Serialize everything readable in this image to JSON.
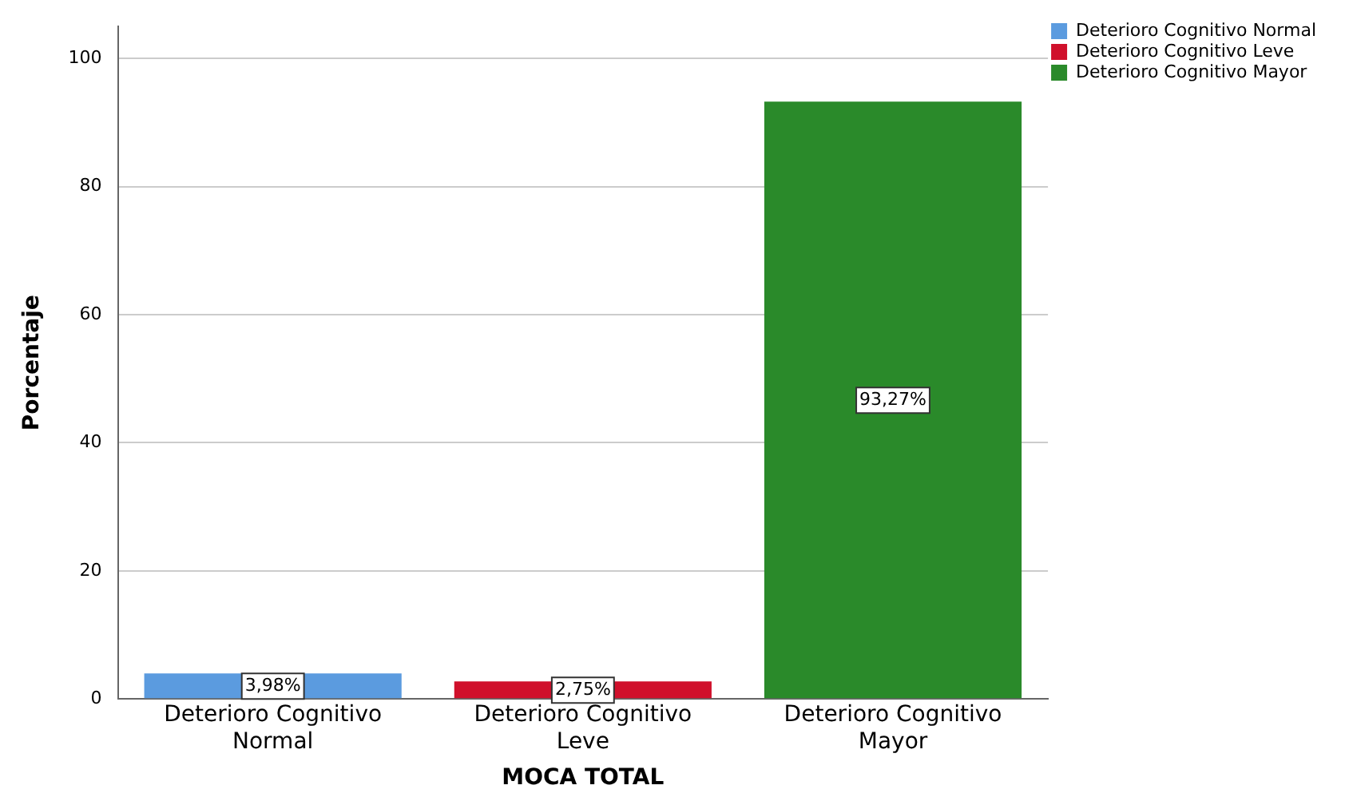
{
  "chart_data": {
    "type": "bar",
    "xlabel": "MOCA TOTAL",
    "ylabel": "Porcentaje",
    "categories": [
      "Deterioro Cognitivo Normal",
      "Deterioro Cognitivo Leve",
      "Deterioro Cognitivo Mayor"
    ],
    "series": [
      {
        "name": "Deterioro Cognitivo Normal",
        "color": "#5b9bdf",
        "values": [
          3.98,
          null,
          null
        ],
        "value_labels": [
          "3,98%",
          null,
          null
        ]
      },
      {
        "name": "Deterioro Cognitivo Leve",
        "color": "#d0102b",
        "values": [
          null,
          2.75,
          null
        ],
        "value_labels": [
          null,
          "2,75%",
          null
        ]
      },
      {
        "name": "Deterioro Cognitivo Mayor",
        "color": "#2a8a2a",
        "values": [
          null,
          null,
          93.27
        ],
        "value_labels": [
          null,
          null,
          "93,27%"
        ]
      }
    ],
    "ylim": [
      0,
      105
    ],
    "yticks": [
      0,
      20,
      40,
      60,
      80,
      100
    ],
    "grid": "y",
    "legend": "right"
  }
}
